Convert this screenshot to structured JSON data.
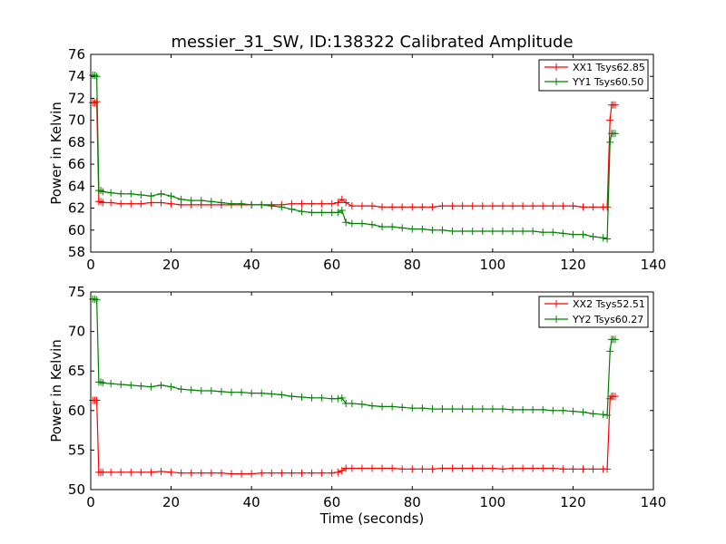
{
  "chart_data": [
    {
      "type": "line",
      "title": "messier_31_SW, ID:138322 Calibrated Amplitude",
      "xlabel": "",
      "ylabel": "Power in Kelvin",
      "xlim": [
        0,
        140
      ],
      "ylim": [
        58,
        76
      ],
      "xticks": [
        "0",
        "20",
        "40",
        "60",
        "80",
        "100",
        "120",
        "140"
      ],
      "yticks": [
        "58",
        "60",
        "62",
        "64",
        "66",
        "68",
        "70",
        "72",
        "74",
        "76"
      ],
      "grid": false,
      "legend_position": "top-right",
      "series": [
        {
          "name": "XX1 Tsys62.85",
          "color": "#ff0000",
          "x": [
            0.5,
            1,
            1.5,
            2,
            2.5,
            3,
            5,
            7.5,
            10,
            12.5,
            15,
            17.5,
            20,
            22.5,
            25,
            27.5,
            30,
            32.5,
            35,
            37.5,
            40,
            42.5,
            45,
            47.5,
            50,
            52.5,
            55,
            57.5,
            60,
            61.5,
            62.5,
            63.5,
            65,
            67.5,
            70,
            72.5,
            75,
            77.5,
            80,
            82.5,
            85,
            87.5,
            90,
            92.5,
            95,
            97.5,
            100,
            102.5,
            105,
            107.5,
            110,
            112.5,
            115,
            117.5,
            120,
            122.5,
            125,
            127.5,
            128.5,
            129.2,
            129.6,
            130,
            130.5
          ],
          "values": [
            71.6,
            71.6,
            71.7,
            62.6,
            62.6,
            62.5,
            62.5,
            62.4,
            62.4,
            62.4,
            62.5,
            62.5,
            62.4,
            62.3,
            62.3,
            62.3,
            62.3,
            62.3,
            62.3,
            62.3,
            62.3,
            62.3,
            62.3,
            62.3,
            62.4,
            62.4,
            62.4,
            62.4,
            62.4,
            62.5,
            62.8,
            62.5,
            62.2,
            62.2,
            62.2,
            62.1,
            62.1,
            62.1,
            62.1,
            62.1,
            62.1,
            62.2,
            62.2,
            62.2,
            62.2,
            62.2,
            62.2,
            62.2,
            62.2,
            62.2,
            62.2,
            62.2,
            62.2,
            62.2,
            62.2,
            62.1,
            62.1,
            62.1,
            62.1,
            70.0,
            71.4,
            71.4,
            71.4
          ]
        },
        {
          "name": "YY1 Tsys60.50",
          "color": "#008000",
          "x": [
            0.5,
            1,
            1.5,
            2,
            2.5,
            3,
            5,
            7.5,
            10,
            12.5,
            15,
            17.5,
            20,
            22.5,
            25,
            27.5,
            30,
            32.5,
            35,
            37.5,
            40,
            42.5,
            45,
            47.5,
            50,
            52.5,
            55,
            57.5,
            60,
            61.5,
            62.5,
            63.5,
            65,
            67.5,
            70,
            72.5,
            75,
            77.5,
            80,
            82.5,
            85,
            87.5,
            90,
            92.5,
            95,
            97.5,
            100,
            102.5,
            105,
            107.5,
            110,
            112.5,
            115,
            117.5,
            120,
            122.5,
            125,
            127.5,
            128.5,
            129.2,
            129.6,
            130,
            130.5
          ],
          "values": [
            74.1,
            74.1,
            74.0,
            63.6,
            63.6,
            63.5,
            63.4,
            63.3,
            63.3,
            63.2,
            63.1,
            63.3,
            63.1,
            62.8,
            62.7,
            62.7,
            62.6,
            62.5,
            62.4,
            62.4,
            62.3,
            62.3,
            62.2,
            62.1,
            61.9,
            61.7,
            61.6,
            61.6,
            61.6,
            61.6,
            61.8,
            60.7,
            60.6,
            60.6,
            60.5,
            60.3,
            60.3,
            60.2,
            60.1,
            60.1,
            60.0,
            60.0,
            59.9,
            59.9,
            59.9,
            59.9,
            59.9,
            59.9,
            59.9,
            59.9,
            59.9,
            59.8,
            59.8,
            59.7,
            59.6,
            59.6,
            59.4,
            59.3,
            59.2,
            68.0,
            68.8,
            68.8,
            68.8
          ]
        }
      ]
    },
    {
      "type": "line",
      "title": "",
      "xlabel": "Time (seconds)",
      "ylabel": "Power in Kelvin",
      "xlim": [
        0,
        140
      ],
      "ylim": [
        50,
        75
      ],
      "xticks": [
        "0",
        "20",
        "40",
        "60",
        "80",
        "100",
        "120",
        "140"
      ],
      "yticks": [
        "50",
        "55",
        "60",
        "65",
        "70",
        "75"
      ],
      "grid": false,
      "legend_position": "top-right",
      "series": [
        {
          "name": "XX2 Tsys52.51",
          "color": "#ff0000",
          "x": [
            0.5,
            1,
            1.5,
            2,
            2.5,
            3,
            5,
            7.5,
            10,
            12.5,
            15,
            17.5,
            20,
            22.5,
            25,
            27.5,
            30,
            32.5,
            35,
            37.5,
            40,
            42.5,
            45,
            47.5,
            50,
            52.5,
            55,
            57.5,
            60,
            61.5,
            62.5,
            63.5,
            65,
            67.5,
            70,
            72.5,
            75,
            77.5,
            80,
            82.5,
            85,
            87.5,
            90,
            92.5,
            95,
            97.5,
            100,
            102.5,
            105,
            107.5,
            110,
            112.5,
            115,
            117.5,
            120,
            122.5,
            125,
            127.5,
            128.5,
            129.2,
            129.6,
            130,
            130.5
          ],
          "values": [
            61.3,
            61.3,
            61.3,
            52.2,
            52.2,
            52.2,
            52.2,
            52.2,
            52.2,
            52.2,
            52.2,
            52.3,
            52.2,
            52.1,
            52.1,
            52.1,
            52.1,
            52.1,
            52.0,
            52.0,
            52.0,
            52.1,
            52.1,
            52.1,
            52.1,
            52.1,
            52.1,
            52.1,
            52.1,
            52.2,
            52.4,
            52.7,
            52.7,
            52.7,
            52.7,
            52.7,
            52.7,
            52.6,
            52.6,
            52.6,
            52.6,
            52.7,
            52.7,
            52.7,
            52.7,
            52.7,
            52.7,
            52.6,
            52.7,
            52.7,
            52.7,
            52.7,
            52.7,
            52.6,
            52.6,
            52.6,
            52.6,
            52.6,
            52.6,
            61.5,
            61.8,
            61.8,
            61.8
          ]
        },
        {
          "name": "YY2 Tsys60.27",
          "color": "#008000",
          "x": [
            0.5,
            1,
            1.5,
            2,
            2.5,
            3,
            5,
            7.5,
            10,
            12.5,
            15,
            17.5,
            20,
            22.5,
            25,
            27.5,
            30,
            32.5,
            35,
            37.5,
            40,
            42.5,
            45,
            47.5,
            50,
            52.5,
            55,
            57.5,
            60,
            61.5,
            62.5,
            63.5,
            65,
            67.5,
            70,
            72.5,
            75,
            77.5,
            80,
            82.5,
            85,
            87.5,
            90,
            92.5,
            95,
            97.5,
            100,
            102.5,
            105,
            107.5,
            110,
            112.5,
            115,
            117.5,
            120,
            122.5,
            125,
            127.5,
            128.5,
            129.2,
            129.6,
            130,
            130.5
          ],
          "values": [
            74.1,
            74.1,
            74.0,
            63.6,
            63.6,
            63.5,
            63.4,
            63.3,
            63.2,
            63.1,
            63.0,
            63.2,
            63.0,
            62.7,
            62.6,
            62.5,
            62.5,
            62.4,
            62.3,
            62.3,
            62.2,
            62.2,
            62.1,
            62.0,
            61.8,
            61.7,
            61.6,
            61.6,
            61.5,
            61.5,
            61.6,
            60.9,
            60.9,
            60.8,
            60.6,
            60.5,
            60.5,
            60.4,
            60.3,
            60.3,
            60.2,
            60.2,
            60.2,
            60.2,
            60.2,
            60.2,
            60.2,
            60.2,
            60.1,
            60.1,
            60.1,
            60.1,
            60.0,
            60.0,
            59.9,
            59.8,
            59.6,
            59.5,
            59.4,
            67.5,
            69.0,
            69.0,
            69.0
          ]
        }
      ]
    }
  ]
}
